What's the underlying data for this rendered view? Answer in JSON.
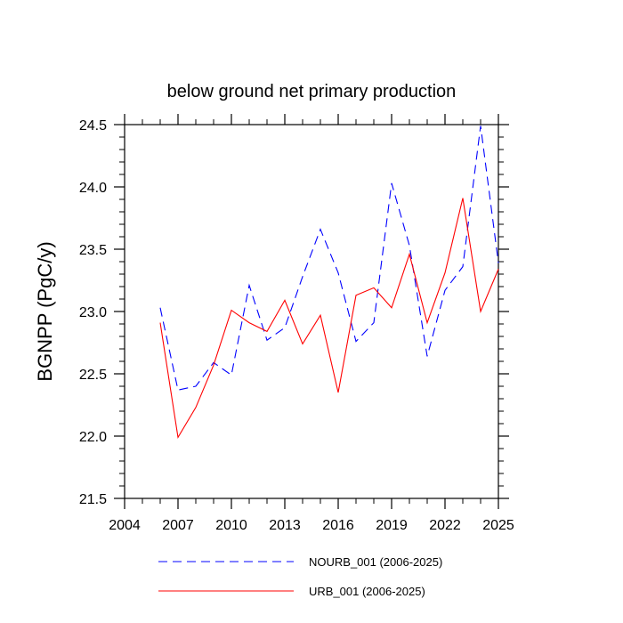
{
  "chart_data": {
    "type": "line",
    "title": "below ground net primary production",
    "xlabel": "",
    "ylabel": "BGNPP  (PgC/y)",
    "xlim": [
      2004,
      2025
    ],
    "ylim": [
      21.5,
      24.5
    ],
    "xticks": [
      2004,
      2007,
      2010,
      2013,
      2016,
      2019,
      2022,
      2025
    ],
    "yticks": [
      21.5,
      22.0,
      22.5,
      23.0,
      23.5,
      24.0,
      24.5
    ],
    "ytick_labels": [
      "21.5",
      "22.0",
      "22.5",
      "23.0",
      "23.5",
      "24.0",
      "24.5"
    ],
    "x": [
      2006,
      2007,
      2008,
      2009,
      2010,
      2011,
      2012,
      2013,
      2014,
      2015,
      2016,
      2017,
      2018,
      2019,
      2020,
      2021,
      2022,
      2023,
      2024,
      2025
    ],
    "series": [
      {
        "name": "NOURB_001 (2006-2025)",
        "color": "#0000ff",
        "dash": "dashed",
        "values": [
          23.03,
          22.37,
          22.4,
          22.59,
          22.49,
          23.21,
          22.77,
          22.87,
          23.28,
          23.66,
          23.31,
          22.76,
          22.91,
          24.03,
          23.53,
          22.64,
          23.17,
          23.36,
          24.49,
          23.39
        ]
      },
      {
        "name": "URB_001 (2006-2025)",
        "color": "#ff0000",
        "dash": "solid",
        "values": [
          22.91,
          21.99,
          22.23,
          22.57,
          23.01,
          22.91,
          22.84,
          23.09,
          22.74,
          22.97,
          22.35,
          23.13,
          23.19,
          23.03,
          23.46,
          22.91,
          23.31,
          23.91,
          23.0,
          23.34
        ]
      }
    ],
    "grid": false,
    "legend_position": "bottom"
  }
}
